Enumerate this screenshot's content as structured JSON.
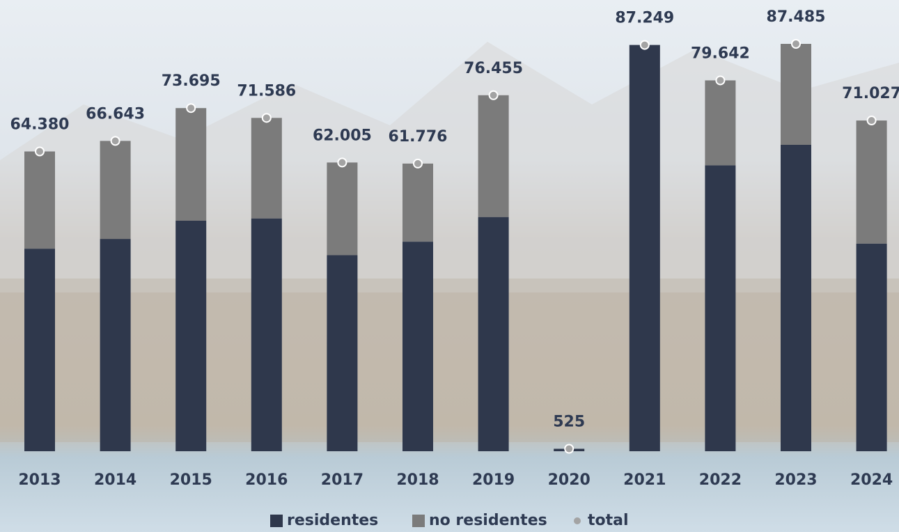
{
  "chart_data": {
    "type": "stacked-bar",
    "categories": [
      "2013",
      "2014",
      "2015",
      "2016",
      "2017",
      "2018",
      "2019",
      "2020",
      "2021",
      "2022",
      "2023",
      "2024"
    ],
    "series": [
      {
        "name": "residentes",
        "color": "#2f384c",
        "values": [
          43500,
          45600,
          49500,
          50000,
          42100,
          45000,
          50300,
          525,
          87249,
          61400,
          65800,
          44600
        ]
      },
      {
        "name": "no residentes",
        "color": "#7b7b7b",
        "values": [
          20880,
          21043,
          24195,
          21586,
          19905,
          16776,
          26155,
          0,
          0,
          18242,
          21685,
          26427
        ]
      },
      {
        "name": "total",
        "color": "#a3a3a3",
        "values": [
          64380,
          66643,
          73695,
          71586,
          62005,
          61776,
          76455,
          525,
          87249,
          79642,
          87485,
          71027
        ],
        "value_labels": [
          "64.380",
          "66.643",
          "73.695",
          "71.586",
          "62.005",
          "61.776",
          "76.455",
          "525",
          "87.249",
          "79.642",
          "87.485",
          "71.027"
        ]
      }
    ]
  }
}
